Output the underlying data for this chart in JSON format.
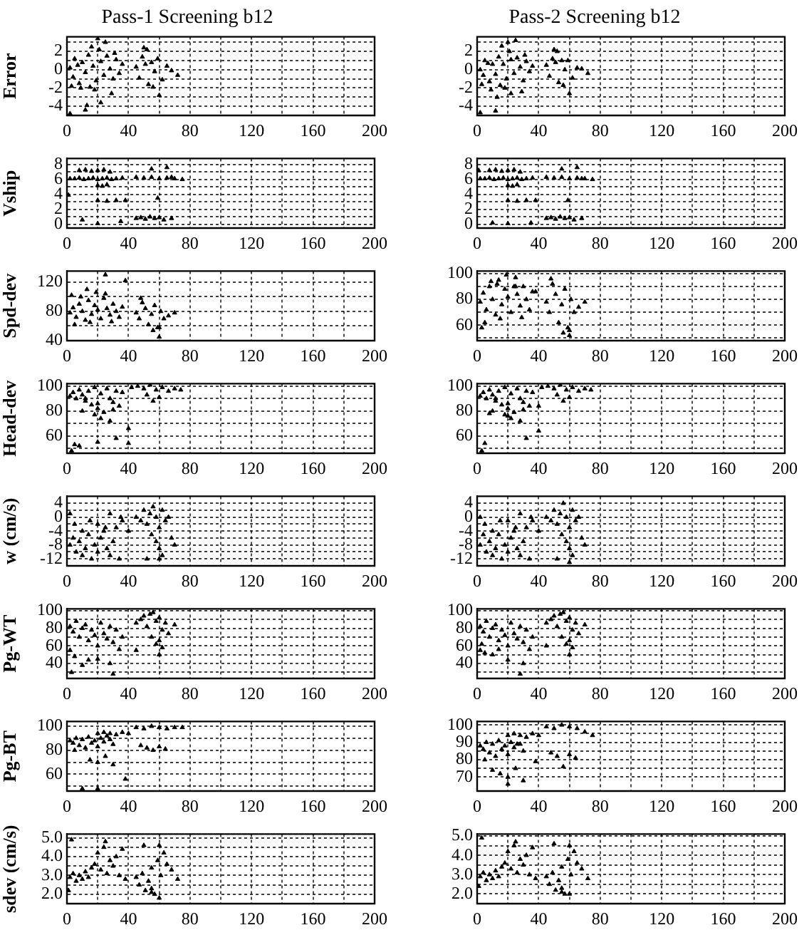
{
  "chart_data": [
    {
      "type": "scatter",
      "title": "Pass-1 Screening b12",
      "ylabel": "Error",
      "color": "#000000",
      "marker": "triangle",
      "grid": true,
      "legend": false,
      "xlim": [
        0,
        200
      ],
      "xticks": [
        0,
        {
          "value": 20,
          "label": null
        },
        40,
        {
          "value": 60,
          "label": null
        },
        80,
        {
          "value": 100,
          "label": null
        },
        120,
        {
          "value": 140,
          "label": null
        },
        160,
        {
          "value": 180,
          "label": null
        },
        200
      ],
      "ylim": [
        -5,
        3.6
      ],
      "yticks": [
        -4,
        {
          "value": -3,
          "label": null
        },
        -2,
        {
          "value": -1,
          "label": null
        },
        0,
        {
          "value": 1,
          "label": null
        },
        2,
        {
          "value": 3,
          "label": null
        }
      ],
      "x": [
        2,
        4,
        5,
        7,
        8,
        10,
        12,
        14,
        15,
        17,
        19,
        21,
        22,
        24,
        26,
        28,
        30,
        32,
        34,
        3,
        9,
        16,
        25,
        29,
        36,
        45,
        47,
        49,
        51,
        53,
        55,
        57,
        59,
        62,
        65,
        68,
        72,
        50,
        56,
        60,
        2,
        12,
        22,
        13,
        20,
        18,
        52,
        31
      ],
      "values": [
        0.2,
        -0.8,
        1.2,
        0.5,
        -1.5,
        0.8,
        -0.3,
        1.6,
        -1.9,
        0.4,
        -1.2,
        2.2,
        0.9,
        -0.6,
        1.5,
        0.1,
        -1.0,
        1.1,
        -0.4,
        -1.8,
        -2.0,
        2.5,
        3.0,
        -2.6,
        0.6,
        0.3,
        -0.9,
        1.4,
        0.6,
        -1.6,
        0.8,
        -0.2,
        1.2,
        -1.1,
        0.4,
        -0.1,
        -0.6,
        2.4,
        -1.9,
        -2.8,
        -4.8,
        -4.4,
        -3.6,
        -3.9,
        3.4,
        -2.2,
        2.2,
        1.8
      ]
    },
    {
      "type": "scatter",
      "title": "Pass-2 Screening b12",
      "color": "#000000",
      "marker": "triangle",
      "grid": true,
      "legend": false,
      "xlim": [
        0,
        200
      ],
      "xticks": [
        0,
        {
          "value": 20,
          "label": null
        },
        40,
        {
          "value": 60,
          "label": null
        },
        80,
        {
          "value": 100,
          "label": null
        },
        120,
        {
          "value": 140,
          "label": null
        },
        160,
        {
          "value": 180,
          "label": null
        },
        200
      ],
      "ylim": [
        -5,
        3.6
      ],
      "yticks": [
        -4,
        {
          "value": -3,
          "label": null
        },
        -2,
        {
          "value": -1,
          "label": null
        },
        0,
        {
          "value": 1,
          "label": null
        },
        2,
        {
          "value": 3,
          "label": null
        }
      ],
      "x": [
        2,
        4,
        5,
        7,
        8,
        10,
        12,
        14,
        15,
        17,
        19,
        21,
        22,
        24,
        26,
        28,
        30,
        32,
        34,
        3,
        9,
        16,
        25,
        29,
        36,
        45,
        47,
        49,
        51,
        53,
        55,
        57,
        59,
        62,
        65,
        68,
        72,
        50,
        56,
        60,
        2,
        12,
        22,
        13,
        20,
        18,
        52,
        31
      ],
      "values": [
        0.0,
        -0.6,
        1.0,
        0.7,
        -1.3,
        0.6,
        -0.5,
        1.4,
        -1.7,
        0.6,
        -1.0,
        2.0,
        1.1,
        -0.4,
        1.3,
        0.3,
        -1.2,
        0.9,
        -0.2,
        -1.6,
        -2.2,
        2.6,
        3.2,
        -2.4,
        0.4,
        0.5,
        -0.7,
        1.2,
        0.8,
        -1.4,
        1.0,
        0.0,
        1.0,
        -0.9,
        0.2,
        0.1,
        -0.4,
        2.2,
        -1.7,
        -2.6,
        -4.7,
        -4.5,
        -2.6,
        -3.0,
        3.0,
        -2.0,
        2.0,
        1.6
      ]
    },
    {
      "type": "scatter",
      "ylabel": "Vship",
      "color": "#000000",
      "marker": "triangle",
      "grid": true,
      "legend": false,
      "xlim": [
        0,
        200
      ],
      "xticks": [
        0,
        {
          "value": 20,
          "label": null
        },
        40,
        {
          "value": 60,
          "label": null
        },
        80,
        {
          "value": 100,
          "label": null
        },
        120,
        {
          "value": 140,
          "label": null
        },
        160,
        {
          "value": 180,
          "label": null
        },
        200
      ],
      "ylim": [
        -0.5,
        8.8
      ],
      "yticks": [
        0,
        {
          "value": 1,
          "label": null
        },
        2,
        {
          "value": 3,
          "label": null
        },
        4,
        {
          "value": 5,
          "label": null
        },
        6,
        {
          "value": 7,
          "label": null
        },
        8
      ],
      "x": [
        2,
        5,
        8,
        11,
        14,
        17,
        20,
        23,
        26,
        29,
        32,
        36,
        45,
        50,
        55,
        60,
        65,
        70,
        75,
        8,
        12,
        16,
        20,
        24,
        28,
        20,
        23,
        26,
        20,
        26,
        32,
        38,
        45,
        48,
        51,
        54,
        57,
        60,
        63,
        68,
        10,
        20,
        35,
        59,
        55,
        65,
        68,
        1
      ],
      "values": [
        6.1,
        6.1,
        6.2,
        6.0,
        6.1,
        6.2,
        6.0,
        6.1,
        6.2,
        6.0,
        6.1,
        6.2,
        6.3,
        6.2,
        6.3,
        6.1,
        6.2,
        6.1,
        6.0,
        7.2,
        7.3,
        7.1,
        7.2,
        7.3,
        7.0,
        5.2,
        5.1,
        5.3,
        3.2,
        3.1,
        3.2,
        3.2,
        0.8,
        0.9,
        0.7,
        1.0,
        0.8,
        0.9,
        0.6,
        0.8,
        0.6,
        0.1,
        0.4,
        3.5,
        7.4,
        7.6,
        6.3,
        3.9
      ]
    },
    {
      "type": "scatter",
      "color": "#000000",
      "marker": "triangle",
      "grid": true,
      "legend": false,
      "xlim": [
        0,
        200
      ],
      "xticks": [
        0,
        {
          "value": 20,
          "label": null
        },
        40,
        {
          "value": 60,
          "label": null
        },
        80,
        {
          "value": 100,
          "label": null
        },
        120,
        {
          "value": 140,
          "label": null
        },
        160,
        {
          "value": 180,
          "label": null
        },
        200
      ],
      "ylim": [
        -0.5,
        8.8
      ],
      "yticks": [
        0,
        {
          "value": 1,
          "label": null
        },
        2,
        {
          "value": 3,
          "label": null
        },
        4,
        {
          "value": 5,
          "label": null
        },
        6,
        {
          "value": 7,
          "label": null
        },
        8
      ],
      "x": [
        2,
        5,
        8,
        11,
        14,
        17,
        20,
        23,
        26,
        29,
        32,
        36,
        45,
        50,
        55,
        60,
        65,
        70,
        75,
        8,
        12,
        16,
        20,
        24,
        28,
        20,
        23,
        26,
        20,
        26,
        32,
        38,
        45,
        48,
        51,
        54,
        57,
        60,
        63,
        68,
        10,
        20,
        35,
        59,
        55,
        65,
        68,
        1
      ],
      "values": [
        6.1,
        6.1,
        6.2,
        6.0,
        6.1,
        6.2,
        6.0,
        6.1,
        6.2,
        6.0,
        6.1,
        6.2,
        6.3,
        6.2,
        6.3,
        6.1,
        6.2,
        6.1,
        6.0,
        7.2,
        7.3,
        7.1,
        7.2,
        7.3,
        7.0,
        5.2,
        5.1,
        5.3,
        3.2,
        3.1,
        3.2,
        3.2,
        0.8,
        0.9,
        0.7,
        1.0,
        0.8,
        0.9,
        0.6,
        0.8,
        0.2,
        0.1,
        0.2,
        3.2,
        7.4,
        7.6,
        6.1,
        7.2
      ]
    },
    {
      "type": "scatter",
      "ylabel": "Spd-dev",
      "color": "#000000",
      "marker": "triangle",
      "grid": true,
      "legend": false,
      "xlim": [
        0,
        200
      ],
      "xticks": [
        0,
        {
          "value": 20,
          "label": null
        },
        40,
        {
          "value": 60,
          "label": null
        },
        80,
        {
          "value": 100,
          "label": null
        },
        120,
        {
          "value": 140,
          "label": null
        },
        160,
        {
          "value": 180,
          "label": null
        },
        200
      ],
      "ylim": [
        40,
        135
      ],
      "yticks": [
        40,
        {
          "value": 60,
          "label": null
        },
        80,
        {
          "value": 100,
          "label": null
        },
        120
      ],
      "x": [
        2,
        4,
        6,
        8,
        10,
        12,
        14,
        16,
        18,
        20,
        22,
        24,
        26,
        28,
        30,
        32,
        34,
        5,
        15,
        25,
        9,
        19,
        29,
        36,
        45,
        47,
        49,
        51,
        53,
        55,
        57,
        59,
        61,
        63,
        66,
        70,
        48,
        56,
        60,
        25,
        38,
        60,
        3,
        13
      ],
      "values": [
        78,
        85,
        72,
        90,
        80,
        68,
        95,
        76,
        88,
        82,
        70,
        98,
        84,
        75,
        90,
        80,
        72,
        62,
        65,
        104,
        100,
        106,
        66,
        86,
        78,
        70,
        92,
        84,
        62,
        76,
        88,
        58,
        80,
        70,
        74,
        78,
        98,
        54,
        45,
        130,
        122,
        58,
        102,
        110
      ]
    },
    {
      "type": "scatter",
      "color": "#000000",
      "marker": "triangle",
      "grid": true,
      "legend": false,
      "xlim": [
        0,
        200
      ],
      "xticks": [
        0,
        {
          "value": 20,
          "label": null
        },
        40,
        {
          "value": 60,
          "label": null
        },
        80,
        {
          "value": 100,
          "label": null
        },
        120,
        {
          "value": 140,
          "label": null
        },
        160,
        {
          "value": 180,
          "label": null
        },
        200
      ],
      "ylim": [
        48,
        102
      ],
      "yticks": [
        {
          "value": 50,
          "label": null
        },
        60,
        {
          "value": 70,
          "label": null
        },
        80,
        {
          "value": 90,
          "label": null
        },
        100
      ],
      "x": [
        2,
        4,
        6,
        8,
        10,
        12,
        14,
        16,
        18,
        20,
        22,
        24,
        26,
        28,
        30,
        32,
        34,
        5,
        15,
        25,
        9,
        19,
        29,
        36,
        45,
        47,
        49,
        51,
        53,
        55,
        57,
        59,
        61,
        63,
        66,
        70,
        48,
        56,
        60,
        25,
        38,
        60,
        3,
        13
      ],
      "values": [
        78,
        85,
        72,
        90,
        80,
        68,
        95,
        76,
        88,
        82,
        70,
        90,
        84,
        75,
        90,
        80,
        72,
        62,
        65,
        97,
        94,
        99,
        66,
        86,
        78,
        70,
        92,
        84,
        62,
        76,
        88,
        58,
        80,
        70,
        74,
        78,
        96,
        54,
        52,
        90,
        86,
        56,
        58,
        92
      ]
    },
    {
      "type": "scatter",
      "ylabel": "Head-dev",
      "color": "#000000",
      "marker": "triangle",
      "grid": true,
      "legend": false,
      "xlim": [
        0,
        200
      ],
      "xticks": [
        0,
        {
          "value": 20,
          "label": null
        },
        40,
        {
          "value": 60,
          "label": null
        },
        80,
        {
          "value": 100,
          "label": null
        },
        120,
        {
          "value": 140,
          "label": null
        },
        160,
        {
          "value": 180,
          "label": null
        },
        200
      ],
      "ylim": [
        46,
        102
      ],
      "yticks": [
        {
          "value": 50,
          "label": null
        },
        60,
        {
          "value": 70,
          "label": null
        },
        80,
        {
          "value": 90,
          "label": null
        },
        100
      ],
      "x": [
        2,
        4,
        6,
        8,
        10,
        12,
        14,
        16,
        18,
        20,
        22,
        24,
        26,
        28,
        30,
        32,
        34,
        36,
        42,
        46,
        50,
        54,
        58,
        62,
        66,
        70,
        74,
        52,
        56,
        60,
        10,
        18,
        22,
        28,
        12,
        20,
        30,
        40,
        8,
        20,
        32,
        40,
        3,
        5
      ],
      "values": [
        92,
        95,
        90,
        97,
        93,
        88,
        96,
        85,
        99,
        82,
        94,
        79,
        98,
        90,
        87,
        96,
        84,
        95,
        99,
        100,
        98,
        101,
        97,
        99,
        96,
        98,
        97,
        93,
        88,
        91,
        80,
        77,
        74,
        72,
        90,
        86,
        81,
        66,
        52,
        55,
        58,
        54,
        48,
        53
      ]
    },
    {
      "type": "scatter",
      "color": "#000000",
      "marker": "triangle",
      "grid": true,
      "legend": false,
      "xlim": [
        0,
        200
      ],
      "xticks": [
        0,
        {
          "value": 20,
          "label": null
        },
        40,
        {
          "value": 60,
          "label": null
        },
        80,
        {
          "value": 100,
          "label": null
        },
        120,
        {
          "value": 140,
          "label": null
        },
        160,
        {
          "value": 180,
          "label": null
        },
        200
      ],
      "ylim": [
        46,
        102
      ],
      "yticks": [
        {
          "value": 50,
          "label": null
        },
        60,
        {
          "value": 70,
          "label": null
        },
        80,
        {
          "value": 90,
          "label": null
        },
        100
      ],
      "x": [
        2,
        4,
        6,
        8,
        10,
        12,
        14,
        16,
        18,
        20,
        22,
        24,
        26,
        28,
        30,
        32,
        34,
        36,
        42,
        46,
        50,
        54,
        58,
        62,
        66,
        70,
        74,
        52,
        56,
        60,
        10,
        18,
        22,
        28,
        12,
        20,
        30,
        40,
        8,
        20,
        32,
        40,
        3,
        5
      ],
      "values": [
        92,
        95,
        90,
        97,
        93,
        88,
        96,
        85,
        99,
        82,
        94,
        79,
        98,
        90,
        87,
        96,
        84,
        95,
        99,
        100,
        98,
        101,
        97,
        99,
        96,
        98,
        97,
        93,
        88,
        91,
        80,
        77,
        74,
        72,
        90,
        86,
        81,
        84,
        78,
        76,
        58,
        64,
        48,
        54
      ]
    },
    {
      "type": "scatter",
      "ylabel": "w (cm/s)",
      "color": "#000000",
      "marker": "triangle",
      "grid": true,
      "legend": false,
      "xlim": [
        0,
        200
      ],
      "xticks": [
        0,
        {
          "value": 20,
          "label": null
        },
        40,
        {
          "value": 60,
          "label": null
        },
        80,
        {
          "value": 100,
          "label": null
        },
        120,
        {
          "value": 140,
          "label": null
        },
        160,
        {
          "value": 180,
          "label": null
        },
        200
      ],
      "ylim": [
        -14,
        6
      ],
      "yticks": [
        -12,
        {
          "value": -10,
          "label": null
        },
        -8,
        {
          "value": -6,
          "label": null
        },
        -4,
        {
          "value": -2,
          "label": null
        },
        0,
        {
          "value": 2,
          "label": null
        },
        4
      ],
      "x": [
        2,
        4,
        6,
        8,
        10,
        12,
        14,
        16,
        18,
        20,
        22,
        24,
        26,
        28,
        30,
        32,
        34,
        5,
        15,
        25,
        35,
        10,
        20,
        28,
        36,
        40,
        45,
        48,
        50,
        52,
        54,
        56,
        58,
        60,
        62,
        64,
        66,
        55,
        58,
        60,
        62,
        68,
        70,
        52,
        60,
        2
      ],
      "values": [
        -8,
        -6,
        -10,
        -7,
        -11,
        -9,
        -5,
        -12,
        -8,
        -10,
        -6,
        -4,
        -9,
        -11,
        -7,
        -3,
        -12,
        -2,
        -1,
        -3,
        0,
        -4,
        -2,
        1,
        -1,
        -4,
        0,
        -1,
        2,
        -2,
        1,
        3,
        0,
        -3,
        2,
        -1,
        0,
        -5,
        -7,
        -9,
        -11,
        -6,
        -8,
        -12,
        -12,
        1
      ]
    },
    {
      "type": "scatter",
      "color": "#000000",
      "marker": "triangle",
      "grid": true,
      "legend": false,
      "xlim": [
        0,
        200
      ],
      "xticks": [
        0,
        {
          "value": 20,
          "label": null
        },
        40,
        {
          "value": 60,
          "label": null
        },
        80,
        {
          "value": 100,
          "label": null
        },
        120,
        {
          "value": 140,
          "label": null
        },
        160,
        {
          "value": 180,
          "label": null
        },
        200
      ],
      "ylim": [
        -14,
        6
      ],
      "yticks": [
        -12,
        {
          "value": -10,
          "label": null
        },
        -8,
        {
          "value": -6,
          "label": null
        },
        -4,
        {
          "value": -2,
          "label": null
        },
        0,
        {
          "value": 2,
          "label": null
        },
        4
      ],
      "x": [
        2,
        4,
        6,
        8,
        10,
        12,
        14,
        16,
        18,
        20,
        22,
        24,
        26,
        28,
        30,
        32,
        34,
        5,
        15,
        25,
        35,
        10,
        20,
        28,
        36,
        40,
        45,
        48,
        50,
        52,
        54,
        56,
        58,
        60,
        62,
        64,
        66,
        55,
        58,
        60,
        62,
        68,
        70,
        52,
        60,
        2
      ],
      "values": [
        -8,
        -5,
        -10,
        -7,
        -11,
        -9,
        -5,
        -12,
        -8,
        -10,
        -6,
        -4,
        -9,
        -11,
        -7,
        -3,
        -12,
        -2,
        -1,
        -3,
        0,
        -4,
        -1,
        1,
        -1,
        -4,
        0,
        -1,
        2,
        -2,
        1,
        4,
        0,
        -3,
        2,
        -1,
        0,
        -5,
        -7,
        -9,
        -11,
        -6,
        -8,
        -12,
        -13,
        0
      ]
    },
    {
      "type": "scatter",
      "ylabel": "Pg-WT",
      "color": "#000000",
      "marker": "triangle",
      "grid": true,
      "legend": false,
      "xlim": [
        0,
        200
      ],
      "xticks": [
        0,
        {
          "value": 20,
          "label": null
        },
        40,
        {
          "value": 60,
          "label": null
        },
        80,
        {
          "value": 100,
          "label": null
        },
        120,
        {
          "value": 140,
          "label": null
        },
        160,
        {
          "value": 180,
          "label": null
        },
        200
      ],
      "ylim": [
        23,
        102
      ],
      "yticks": [
        {
          "value": 30,
          "label": null
        },
        40,
        {
          "value": 50,
          "label": null
        },
        60,
        {
          "value": 70,
          "label": null
        },
        80,
        {
          "value": 90,
          "label": null
        },
        100
      ],
      "x": [
        2,
        4,
        6,
        8,
        10,
        12,
        14,
        16,
        18,
        20,
        22,
        24,
        26,
        28,
        30,
        32,
        34,
        36,
        45,
        48,
        50,
        52,
        54,
        56,
        58,
        60,
        62,
        64,
        66,
        70,
        55,
        58,
        60,
        62,
        2,
        5,
        10,
        20,
        28,
        30,
        3,
        45,
        60,
        14
      ],
      "values": [
        82,
        76,
        88,
        70,
        80,
        84,
        66,
        78,
        72,
        60,
        86,
        74,
        68,
        82,
        64,
        78,
        56,
        70,
        86,
        90,
        94,
        82,
        96,
        98,
        88,
        92,
        78,
        86,
        74,
        84,
        70,
        62,
        66,
        58,
        55,
        48,
        38,
        45,
        40,
        28,
        30,
        55,
        50,
        44
      ]
    },
    {
      "type": "scatter",
      "color": "#000000",
      "marker": "triangle",
      "grid": true,
      "legend": false,
      "xlim": [
        0,
        200
      ],
      "xticks": [
        0,
        {
          "value": 20,
          "label": null
        },
        40,
        {
          "value": 60,
          "label": null
        },
        80,
        {
          "value": 100,
          "label": null
        },
        120,
        {
          "value": 140,
          "label": null
        },
        160,
        {
          "value": 180,
          "label": null
        },
        200
      ],
      "ylim": [
        23,
        102
      ],
      "yticks": [
        {
          "value": 30,
          "label": null
        },
        40,
        {
          "value": 50,
          "label": null
        },
        60,
        {
          "value": 70,
          "label": null
        },
        80,
        {
          "value": 90,
          "label": null
        },
        100
      ],
      "x": [
        2,
        4,
        6,
        8,
        10,
        12,
        14,
        16,
        18,
        20,
        22,
        24,
        26,
        28,
        30,
        32,
        34,
        36,
        45,
        48,
        50,
        52,
        54,
        56,
        58,
        60,
        62,
        64,
        66,
        70,
        55,
        58,
        60,
        62,
        2,
        5,
        10,
        20,
        28,
        30,
        3,
        45,
        60,
        14
      ],
      "values": [
        82,
        76,
        88,
        70,
        80,
        84,
        66,
        78,
        72,
        60,
        86,
        74,
        68,
        82,
        64,
        78,
        56,
        70,
        86,
        90,
        94,
        82,
        96,
        98,
        88,
        92,
        78,
        86,
        74,
        84,
        70,
        62,
        66,
        58,
        55,
        52,
        50,
        44,
        28,
        40,
        62,
        60,
        50,
        56
      ]
    },
    {
      "type": "scatter",
      "ylabel": "Pg-BT",
      "color": "#000000",
      "marker": "triangle",
      "grid": true,
      "legend": false,
      "xlim": [
        0,
        200
      ],
      "xticks": [
        0,
        {
          "value": 20,
          "label": null
        },
        40,
        {
          "value": 60,
          "label": null
        },
        80,
        {
          "value": 100,
          "label": null
        },
        120,
        {
          "value": 140,
          "label": null
        },
        160,
        {
          "value": 180,
          "label": null
        },
        200
      ],
      "ylim": [
        46,
        104
      ],
      "yticks": [
        {
          "value": 50,
          "label": null
        },
        60,
        {
          "value": 70,
          "label": null
        },
        80,
        {
          "value": 90,
          "label": null
        },
        100
      ],
      "x": [
        2,
        4,
        6,
        8,
        10,
        12,
        14,
        16,
        18,
        20,
        22,
        24,
        26,
        28,
        30,
        20,
        24,
        28,
        32,
        36,
        40,
        45,
        50,
        55,
        60,
        65,
        70,
        75,
        48,
        52,
        56,
        60,
        64,
        15,
        20,
        25,
        30,
        5,
        10,
        20,
        38
      ],
      "values": [
        88,
        86,
        90,
        84,
        89,
        82,
        91,
        86,
        88,
        83,
        90,
        87,
        92,
        89,
        85,
        94,
        95,
        94,
        93,
        95,
        94,
        99,
        98,
        100,
        99,
        98,
        99,
        99,
        84,
        82,
        80,
        83,
        81,
        72,
        70,
        75,
        68,
        80,
        48,
        48,
        56
      ]
    },
    {
      "type": "scatter",
      "color": "#000000",
      "marker": "triangle",
      "grid": true,
      "legend": false,
      "xlim": [
        0,
        200
      ],
      "xticks": [
        0,
        {
          "value": 20,
          "label": null
        },
        40,
        {
          "value": 60,
          "label": null
        },
        80,
        {
          "value": 100,
          "label": null
        },
        120,
        {
          "value": 140,
          "label": null
        },
        160,
        {
          "value": 180,
          "label": null
        },
        200
      ],
      "ylim": [
        62,
        102
      ],
      "yticks": [
        70,
        {
          "value": 75,
          "label": null
        },
        80,
        {
          "value": 85,
          "label": null
        },
        90,
        {
          "value": 95,
          "label": null
        },
        100
      ],
      "x": [
        2,
        4,
        6,
        8,
        10,
        12,
        14,
        16,
        18,
        20,
        22,
        24,
        26,
        28,
        30,
        20,
        24,
        28,
        32,
        36,
        40,
        45,
        50,
        55,
        60,
        65,
        70,
        75,
        48,
        52,
        56,
        60,
        64,
        15,
        20,
        25,
        30,
        5,
        10,
        20,
        38
      ],
      "values": [
        88,
        86,
        90,
        84,
        89,
        82,
        91,
        86,
        88,
        83,
        90,
        87,
        89,
        89,
        85,
        94,
        95,
        94,
        93,
        95,
        94,
        99,
        98,
        100,
        99,
        98,
        96,
        94,
        84,
        82,
        76,
        83,
        81,
        72,
        70,
        75,
        68,
        80,
        74,
        66,
        79
      ]
    },
    {
      "type": "scatter",
      "ylabel": "sdev (cm/s)",
      "color": "#000000",
      "marker": "triangle",
      "grid": true,
      "legend": false,
      "xlim": [
        0,
        200
      ],
      "xticks": [
        0,
        {
          "value": 20,
          "label": null
        },
        40,
        {
          "value": 60,
          "label": null
        },
        80,
        {
          "value": 100,
          "label": null
        },
        120,
        {
          "value": 140,
          "label": null
        },
        160,
        {
          "value": 180,
          "label": null
        },
        200
      ],
      "ylim": [
        1.5,
        5.2
      ],
      "yticks": [
        {
          "value": 2,
          "label": "2.0"
        },
        {
          "value": 2.5,
          "label": null
        },
        {
          "value": 3,
          "label": "3.0"
        },
        {
          "value": 3.5,
          "label": null
        },
        {
          "value": 4,
          "label": "4.0"
        },
        {
          "value": 4.5,
          "label": null
        },
        {
          "value": 5,
          "label": "5.0"
        }
      ],
      "x": [
        2,
        4,
        6,
        8,
        10,
        12,
        14,
        16,
        18,
        20,
        22,
        24,
        26,
        28,
        30,
        32,
        34,
        36,
        38,
        45,
        47,
        49,
        51,
        53,
        55,
        57,
        59,
        61,
        63,
        65,
        68,
        72,
        50,
        55,
        60,
        3,
        1,
        25,
        55,
        60
      ],
      "values": [
        2.9,
        3.1,
        2.7,
        3.0,
        2.8,
        3.2,
        2.9,
        3.4,
        3.6,
        4.2,
        3.3,
        4.5,
        3.1,
        3.8,
        3.5,
        4.0,
        3.0,
        4.4,
        2.8,
        2.9,
        2.5,
        3.1,
        2.2,
        2.7,
        3.4,
        2.0,
        3.8,
        3.0,
        4.2,
        3.6,
        3.3,
        2.8,
        4.6,
        2.1,
        1.8,
        4.9,
        2.2,
        4.8,
        2.3,
        4.6
      ]
    },
    {
      "type": "scatter",
      "color": "#000000",
      "marker": "triangle",
      "grid": true,
      "legend": false,
      "xlim": [
        0,
        200
      ],
      "xticks": [
        0,
        {
          "value": 20,
          "label": null
        },
        40,
        {
          "value": 60,
          "label": null
        },
        80,
        {
          "value": 100,
          "label": null
        },
        120,
        {
          "value": 140,
          "label": null
        },
        160,
        {
          "value": 180,
          "label": null
        },
        200
      ],
      "ylim": [
        1.5,
        5.1
      ],
      "yticks": [
        {
          "value": 2,
          "label": "2.0"
        },
        {
          "value": 2.5,
          "label": null
        },
        {
          "value": 3,
          "label": "3.0"
        },
        {
          "value": 3.5,
          "label": null
        },
        {
          "value": 4,
          "label": "4.0"
        },
        {
          "value": 4.5,
          "label": null
        },
        {
          "value": 5,
          "label": "5.0"
        }
      ],
      "x": [
        2,
        4,
        6,
        8,
        10,
        12,
        14,
        16,
        18,
        20,
        22,
        24,
        26,
        28,
        30,
        32,
        34,
        36,
        38,
        45,
        47,
        49,
        51,
        53,
        55,
        57,
        59,
        61,
        63,
        65,
        68,
        72,
        50,
        55,
        60,
        3,
        1,
        25,
        55,
        60
      ],
      "values": [
        2.9,
        3.1,
        2.7,
        3.0,
        2.8,
        3.2,
        2.9,
        3.4,
        3.6,
        4.2,
        3.3,
        4.5,
        3.1,
        3.8,
        3.5,
        4.0,
        3.0,
        4.4,
        2.8,
        2.9,
        2.5,
        3.1,
        2.2,
        2.7,
        3.4,
        2.0,
        3.8,
        3.0,
        4.2,
        3.6,
        3.3,
        2.8,
        4.6,
        2.1,
        2.0,
        4.9,
        2.4,
        4.7,
        2.3,
        4.5
      ]
    }
  ]
}
